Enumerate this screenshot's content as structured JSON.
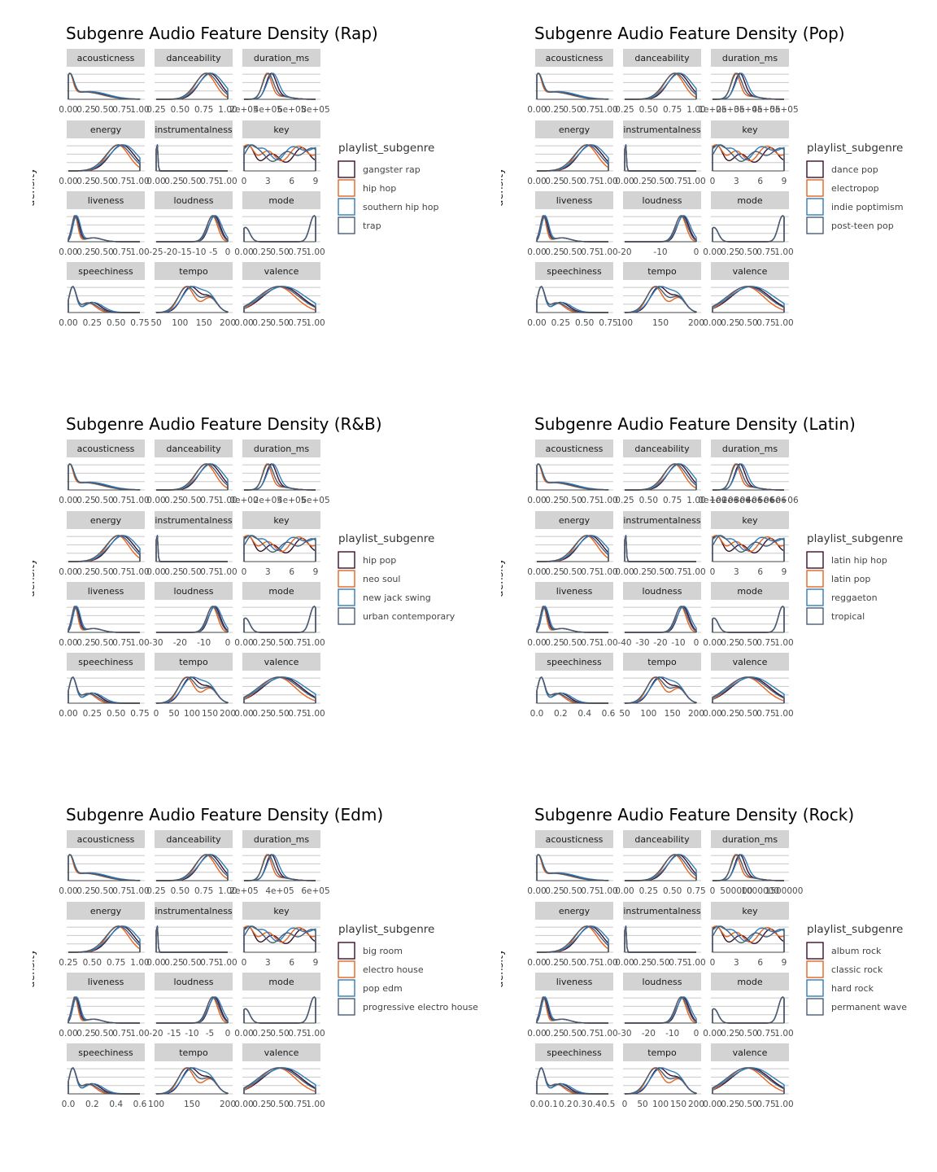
{
  "colors": {
    "strip": "#d3d3d3",
    "grid": "#c8c8c8",
    "axis": "#444444",
    "series": [
      "#3b0f2b",
      "#e5641f",
      "#2f7db9",
      "#4a5c73"
    ]
  },
  "chart_data": [
    {
      "type": "area",
      "title": "Subgenre Audio Feature Density (Rap)",
      "ylabel": "density",
      "legend_title": "playlist_subgenre",
      "legend": [
        "gangster rap",
        "hip hop",
        "southern hip hop",
        "trap"
      ],
      "facets": [
        {
          "name": "acousticness",
          "ticks": [
            "0.00",
            "0.25",
            "0.50",
            "0.75",
            "1.00"
          ]
        },
        {
          "name": "danceability",
          "ticks": [
            "0.25",
            "0.50",
            "0.75",
            "1.00"
          ]
        },
        {
          "name": "duration_ms",
          "ticks": [
            "2e+05",
            "4e+05",
            "6e+05",
            "8e+05"
          ]
        },
        {
          "name": "energy",
          "ticks": [
            "0.00",
            "0.25",
            "0.50",
            "0.75",
            "1.00"
          ]
        },
        {
          "name": "instrumentalness",
          "ticks": [
            "0.00",
            "0.25",
            "0.50",
            "0.75",
            "1.00"
          ]
        },
        {
          "name": "key",
          "ticks": [
            "0",
            "3",
            "6",
            "9"
          ]
        },
        {
          "name": "liveness",
          "ticks": [
            "0.00",
            "0.25",
            "0.50",
            "0.75",
            "1.00"
          ]
        },
        {
          "name": "loudness",
          "ticks": [
            "-25",
            "-20",
            "-15",
            "-10",
            "-5",
            "0"
          ]
        },
        {
          "name": "mode",
          "ticks": [
            "0.00",
            "0.25",
            "0.50",
            "0.75",
            "1.00"
          ]
        },
        {
          "name": "speechiness",
          "ticks": [
            "0.00",
            "0.25",
            "0.50",
            "0.75"
          ]
        },
        {
          "name": "tempo",
          "ticks": [
            "50",
            "100",
            "150",
            "200"
          ]
        },
        {
          "name": "valence",
          "ticks": [
            "0.00",
            "0.25",
            "0.50",
            "0.75",
            "1.00"
          ]
        }
      ]
    },
    {
      "type": "area",
      "title": "Subgenre Audio Feature Density (Pop)",
      "ylabel": "density",
      "legend_title": "playlist_subgenre",
      "legend": [
        "dance pop",
        "electropop",
        "indie poptimism",
        "post-teen pop"
      ],
      "facets": [
        {
          "name": "acousticness",
          "ticks": [
            "0.00",
            "0.25",
            "0.50",
            "0.75",
            "1.00"
          ]
        },
        {
          "name": "danceability",
          "ticks": [
            "0.25",
            "0.50",
            "0.75",
            "1.00"
          ]
        },
        {
          "name": "duration_ms",
          "ticks": [
            "1e+05",
            "2e+05",
            "3e+05",
            "4e+05",
            "5e+05"
          ]
        },
        {
          "name": "energy",
          "ticks": [
            "0.00",
            "0.25",
            "0.50",
            "0.75",
            "1.00"
          ]
        },
        {
          "name": "instrumentalness",
          "ticks": [
            "0.00",
            "0.25",
            "0.50",
            "0.75",
            "1.00"
          ]
        },
        {
          "name": "key",
          "ticks": [
            "0",
            "3",
            "6",
            "9"
          ]
        },
        {
          "name": "liveness",
          "ticks": [
            "0.00",
            "0.25",
            "0.50",
            "0.75",
            "1.00"
          ]
        },
        {
          "name": "loudness",
          "ticks": [
            "-20",
            "-10",
            "0"
          ]
        },
        {
          "name": "mode",
          "ticks": [
            "0.00",
            "0.25",
            "0.50",
            "0.75",
            "1.00"
          ]
        },
        {
          "name": "speechiness",
          "ticks": [
            "0.00",
            "0.25",
            "0.50",
            "0.75"
          ]
        },
        {
          "name": "tempo",
          "ticks": [
            "100",
            "150",
            "200"
          ]
        },
        {
          "name": "valence",
          "ticks": [
            "0.00",
            "0.25",
            "0.50",
            "0.75",
            "1.00"
          ]
        }
      ]
    },
    {
      "type": "area",
      "title": "Subgenre Audio Feature Density (R&B)",
      "ylabel": "density",
      "legend_title": "playlist_subgenre",
      "legend": [
        "hip pop",
        "neo soul",
        "new jack swing",
        "urban contemporary"
      ],
      "facets": [
        {
          "name": "acousticness",
          "ticks": [
            "0.00",
            "0.25",
            "0.50",
            "0.75",
            "1.00"
          ]
        },
        {
          "name": "danceability",
          "ticks": [
            "0.00",
            "0.25",
            "0.50",
            "0.75",
            "1.00"
          ]
        },
        {
          "name": "duration_ms",
          "ticks": [
            "0e+00",
            "2e+05",
            "4e+05",
            "6e+05"
          ]
        },
        {
          "name": "energy",
          "ticks": [
            "0.00",
            "0.25",
            "0.50",
            "0.75",
            "1.00"
          ]
        },
        {
          "name": "instrumentalness",
          "ticks": [
            "0.00",
            "0.25",
            "0.50",
            "0.75",
            "1.00"
          ]
        },
        {
          "name": "key",
          "ticks": [
            "0",
            "3",
            "6",
            "9"
          ]
        },
        {
          "name": "liveness",
          "ticks": [
            "0.00",
            "0.25",
            "0.50",
            "0.75",
            "1.00"
          ]
        },
        {
          "name": "loudness",
          "ticks": [
            "-30",
            "-20",
            "-10",
            "0"
          ]
        },
        {
          "name": "mode",
          "ticks": [
            "0.00",
            "0.25",
            "0.50",
            "0.75",
            "1.00"
          ]
        },
        {
          "name": "speechiness",
          "ticks": [
            "0.00",
            "0.25",
            "0.50",
            "0.75"
          ]
        },
        {
          "name": "tempo",
          "ticks": [
            "0",
            "50",
            "100",
            "150",
            "200"
          ]
        },
        {
          "name": "valence",
          "ticks": [
            "0.00",
            "0.25",
            "0.50",
            "0.75",
            "1.00"
          ]
        }
      ]
    },
    {
      "type": "area",
      "title": "Subgenre Audio Feature Density (Latin)",
      "ylabel": "density",
      "legend_title": "playlist_subgenre",
      "legend": [
        "latin hip hop",
        "latin pop",
        "reggaeton",
        "tropical"
      ],
      "facets": [
        {
          "name": "acousticness",
          "ticks": [
            "0.00",
            "0.25",
            "0.50",
            "0.75",
            "1.00"
          ]
        },
        {
          "name": "danceability",
          "ticks": [
            "0.25",
            "0.50",
            "0.75",
            "1.00"
          ]
        },
        {
          "name": "duration_ms",
          "ticks": [
            "0e+00",
            "1e+06",
            "2e+06",
            "3e+06",
            "4e+06",
            "5e+06",
            "6e+06"
          ]
        },
        {
          "name": "energy",
          "ticks": [
            "0.00",
            "0.25",
            "0.50",
            "0.75",
            "1.00"
          ]
        },
        {
          "name": "instrumentalness",
          "ticks": [
            "0.00",
            "0.25",
            "0.50",
            "0.75",
            "1.00"
          ]
        },
        {
          "name": "key",
          "ticks": [
            "0",
            "3",
            "6",
            "9"
          ]
        },
        {
          "name": "liveness",
          "ticks": [
            "0.00",
            "0.25",
            "0.50",
            "0.75",
            "1.00"
          ]
        },
        {
          "name": "loudness",
          "ticks": [
            "-40",
            "-30",
            "-20",
            "-10",
            "0"
          ]
        },
        {
          "name": "mode",
          "ticks": [
            "0.00",
            "0.25",
            "0.50",
            "0.75",
            "1.00"
          ]
        },
        {
          "name": "speechiness",
          "ticks": [
            "0.0",
            "0.2",
            "0.4",
            "0.6"
          ]
        },
        {
          "name": "tempo",
          "ticks": [
            "50",
            "100",
            "150",
            "200"
          ]
        },
        {
          "name": "valence",
          "ticks": [
            "0.00",
            "0.25",
            "0.50",
            "0.75",
            "1.00"
          ]
        }
      ]
    },
    {
      "type": "area",
      "title": "Subgenre Audio Feature Density (Edm)",
      "ylabel": "density",
      "legend_title": "playlist_subgenre",
      "legend": [
        "big room",
        "electro house",
        "pop edm",
        "progressive electro house"
      ],
      "facets": [
        {
          "name": "acousticness",
          "ticks": [
            "0.00",
            "0.25",
            "0.50",
            "0.75",
            "1.00"
          ]
        },
        {
          "name": "danceability",
          "ticks": [
            "0.25",
            "0.50",
            "0.75",
            "1.00"
          ]
        },
        {
          "name": "duration_ms",
          "ticks": [
            "2e+05",
            "4e+05",
            "6e+05"
          ]
        },
        {
          "name": "energy",
          "ticks": [
            "0.25",
            "0.50",
            "0.75",
            "1.00"
          ]
        },
        {
          "name": "instrumentalness",
          "ticks": [
            "0.00",
            "0.25",
            "0.50",
            "0.75",
            "1.00"
          ]
        },
        {
          "name": "key",
          "ticks": [
            "0",
            "3",
            "6",
            "9"
          ]
        },
        {
          "name": "liveness",
          "ticks": [
            "0.00",
            "0.25",
            "0.50",
            "0.75",
            "1.00"
          ]
        },
        {
          "name": "loudness",
          "ticks": [
            "-20",
            "-15",
            "-10",
            "-5",
            "0"
          ]
        },
        {
          "name": "mode",
          "ticks": [
            "0.00",
            "0.25",
            "0.50",
            "0.75",
            "1.00"
          ]
        },
        {
          "name": "speechiness",
          "ticks": [
            "0.0",
            "0.2",
            "0.4",
            "0.6"
          ]
        },
        {
          "name": "tempo",
          "ticks": [
            "100",
            "150",
            "200"
          ]
        },
        {
          "name": "valence",
          "ticks": [
            "0.00",
            "0.25",
            "0.50",
            "0.75",
            "1.00"
          ]
        }
      ]
    },
    {
      "type": "area",
      "title": "Subgenre Audio Feature Density (Rock)",
      "ylabel": "density",
      "legend_title": "playlist_subgenre",
      "legend": [
        "album rock",
        "classic rock",
        "hard rock",
        "permanent wave"
      ],
      "facets": [
        {
          "name": "acousticness",
          "ticks": [
            "0.00",
            "0.25",
            "0.50",
            "0.75",
            "1.00"
          ]
        },
        {
          "name": "danceability",
          "ticks": [
            "0.00",
            "0.25",
            "0.50",
            "0.75"
          ]
        },
        {
          "name": "duration_ms",
          "ticks": [
            "0",
            "500000",
            "1000000",
            "1500000"
          ]
        },
        {
          "name": "energy",
          "ticks": [
            "0.00",
            "0.25",
            "0.50",
            "0.75",
            "1.00"
          ]
        },
        {
          "name": "instrumentalness",
          "ticks": [
            "0.00",
            "0.25",
            "0.50",
            "0.75",
            "1.00"
          ]
        },
        {
          "name": "key",
          "ticks": [
            "0",
            "3",
            "6",
            "9"
          ]
        },
        {
          "name": "liveness",
          "ticks": [
            "0.00",
            "0.25",
            "0.50",
            "0.75",
            "1.00"
          ]
        },
        {
          "name": "loudness",
          "ticks": [
            "-30",
            "-20",
            "-10",
            "0"
          ]
        },
        {
          "name": "mode",
          "ticks": [
            "0.00",
            "0.25",
            "0.50",
            "0.75",
            "1.00"
          ]
        },
        {
          "name": "speechiness",
          "ticks": [
            "0.0",
            "0.1",
            "0.2",
            "0.3",
            "0.4",
            "0.5"
          ]
        },
        {
          "name": "tempo",
          "ticks": [
            "0",
            "50",
            "100",
            "150",
            "200"
          ]
        },
        {
          "name": "valence",
          "ticks": [
            "0.00",
            "0.25",
            "0.50",
            "0.75",
            "1.00"
          ]
        }
      ]
    }
  ]
}
